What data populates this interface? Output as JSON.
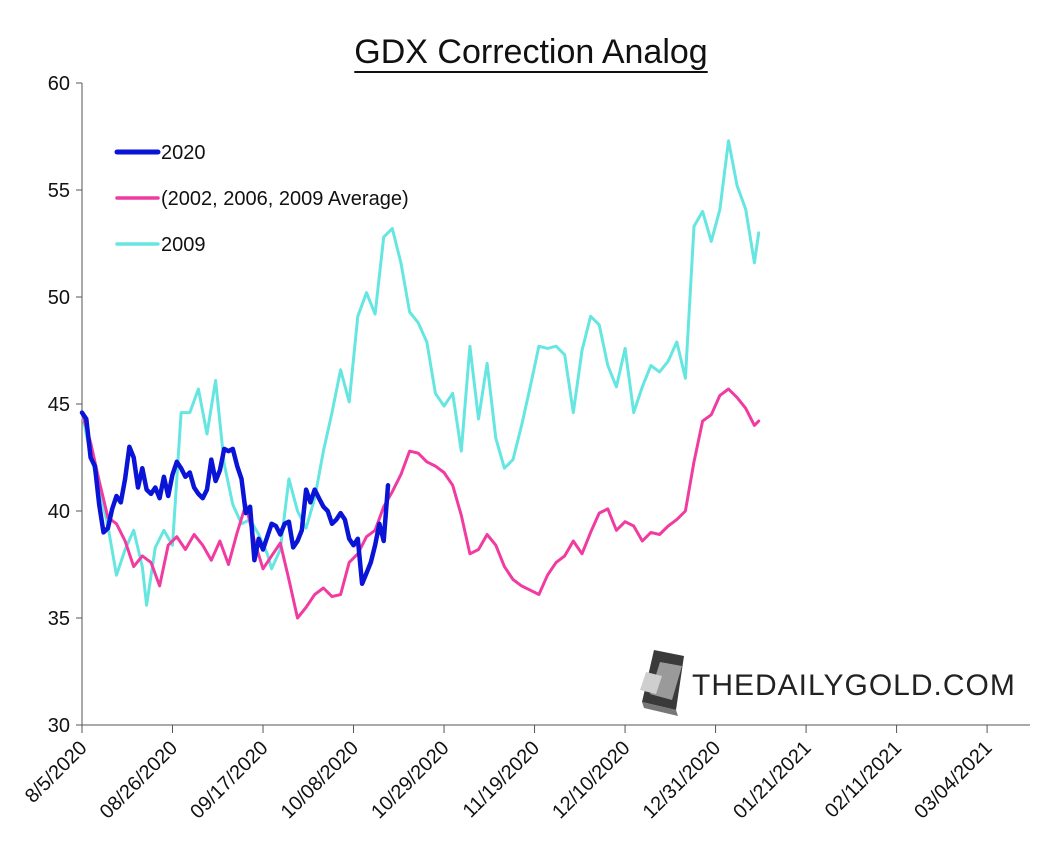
{
  "chart_data": {
    "type": "line",
    "title": "GDX Correction Analog",
    "xlabel": "",
    "ylabel": "",
    "ylim": [
      30,
      60
    ],
    "yticks": [
      30,
      35,
      40,
      45,
      50,
      55,
      60
    ],
    "xticks": [
      "8/5/2020",
      "08/26/2020",
      "09/17/2020",
      "10/08/2020",
      "10/29/2020",
      "11/19/2020",
      "12/10/2020",
      "12/31/2020",
      "01/21/2021",
      "02/11/2021",
      "03/04/2021"
    ],
    "x_index_range": [
      0,
      157
    ],
    "legend_position": "top-left",
    "grid": false,
    "watermark": "THEDAILYGOLD.COM",
    "series": [
      {
        "name": "2020",
        "color": "#0a14d6",
        "points": [
          [
            0,
            44.6
          ],
          [
            1,
            44.3
          ],
          [
            2,
            42.5
          ],
          [
            3,
            42.1
          ],
          [
            4,
            40.3
          ],
          [
            5,
            39.0
          ],
          [
            6,
            39.2
          ],
          [
            7,
            40.1
          ],
          [
            8,
            40.7
          ],
          [
            9,
            40.4
          ],
          [
            10,
            41.5
          ],
          [
            11,
            43.0
          ],
          [
            12,
            42.5
          ],
          [
            13,
            41.1
          ],
          [
            14,
            42.0
          ],
          [
            15,
            41.0
          ],
          [
            16,
            40.8
          ],
          [
            17,
            41.1
          ],
          [
            18,
            40.6
          ],
          [
            19,
            41.6
          ],
          [
            20,
            40.7
          ],
          [
            21,
            41.7
          ],
          [
            22,
            42.3
          ],
          [
            23,
            42.0
          ],
          [
            24,
            41.6
          ],
          [
            25,
            41.8
          ],
          [
            26,
            41.1
          ],
          [
            27,
            40.8
          ],
          [
            28,
            40.6
          ],
          [
            29,
            41.0
          ],
          [
            30,
            42.4
          ],
          [
            31,
            41.4
          ],
          [
            32,
            41.9
          ],
          [
            33,
            42.9
          ],
          [
            34,
            42.8
          ],
          [
            35,
            42.9
          ],
          [
            36,
            42.1
          ],
          [
            37,
            41.5
          ],
          [
            38,
            39.9
          ],
          [
            39,
            40.2
          ],
          [
            40,
            37.7
          ],
          [
            41,
            38.7
          ],
          [
            42,
            38.2
          ],
          [
            43,
            38.8
          ],
          [
            44,
            39.4
          ],
          [
            45,
            39.3
          ],
          [
            46,
            38.9
          ],
          [
            47,
            39.4
          ],
          [
            48,
            39.5
          ],
          [
            49,
            38.3
          ],
          [
            50,
            38.6
          ],
          [
            51,
            39.1
          ],
          [
            52,
            41.0
          ],
          [
            53,
            40.4
          ],
          [
            54,
            41.0
          ],
          [
            55,
            40.6
          ],
          [
            56,
            40.2
          ],
          [
            57,
            40.0
          ],
          [
            58,
            39.4
          ],
          [
            59,
            39.6
          ],
          [
            60,
            39.9
          ],
          [
            61,
            39.6
          ],
          [
            62,
            38.7
          ],
          [
            63,
            38.4
          ],
          [
            64,
            38.7
          ],
          [
            65,
            36.6
          ],
          [
            66,
            37.1
          ],
          [
            67,
            37.6
          ],
          [
            68,
            38.4
          ],
          [
            69,
            39.4
          ],
          [
            70,
            38.6
          ],
          [
            71,
            41.2
          ]
        ]
      },
      {
        "name": "(2002, 2006, 2009 Average)",
        "color": "#f03ca0",
        "points": [
          [
            0,
            44.6
          ],
          [
            2,
            43.2
          ],
          [
            4,
            41.4
          ],
          [
            6,
            39.7
          ],
          [
            8,
            39.4
          ],
          [
            10,
            38.6
          ],
          [
            12,
            37.4
          ],
          [
            14,
            37.9
          ],
          [
            16,
            37.6
          ],
          [
            18,
            36.5
          ],
          [
            20,
            38.4
          ],
          [
            22,
            38.8
          ],
          [
            24,
            38.2
          ],
          [
            26,
            38.9
          ],
          [
            28,
            38.4
          ],
          [
            30,
            37.7
          ],
          [
            32,
            38.6
          ],
          [
            34,
            37.5
          ],
          [
            36,
            39.0
          ],
          [
            38,
            40.3
          ],
          [
            40,
            38.6
          ],
          [
            42,
            37.3
          ],
          [
            44,
            37.9
          ],
          [
            46,
            38.5
          ],
          [
            48,
            36.8
          ],
          [
            50,
            35.0
          ],
          [
            52,
            35.5
          ],
          [
            54,
            36.1
          ],
          [
            56,
            36.4
          ],
          [
            58,
            36.0
          ],
          [
            60,
            36.1
          ],
          [
            62,
            37.6
          ],
          [
            64,
            38.0
          ],
          [
            66,
            38.8
          ],
          [
            68,
            39.1
          ],
          [
            70,
            40.2
          ],
          [
            72,
            40.9
          ],
          [
            74,
            41.7
          ],
          [
            76,
            42.8
          ],
          [
            78,
            42.7
          ],
          [
            80,
            42.3
          ],
          [
            82,
            42.1
          ],
          [
            84,
            41.8
          ],
          [
            86,
            41.2
          ],
          [
            88,
            39.8
          ],
          [
            90,
            38.0
          ],
          [
            92,
            38.2
          ],
          [
            94,
            38.9
          ],
          [
            96,
            38.4
          ],
          [
            98,
            37.4
          ],
          [
            100,
            36.8
          ],
          [
            102,
            36.5
          ],
          [
            104,
            36.3
          ],
          [
            106,
            36.1
          ],
          [
            108,
            37.0
          ],
          [
            110,
            37.6
          ],
          [
            112,
            37.9
          ],
          [
            114,
            38.6
          ],
          [
            116,
            38.0
          ],
          [
            118,
            39.0
          ],
          [
            120,
            39.9
          ],
          [
            122,
            40.1
          ],
          [
            124,
            39.1
          ],
          [
            126,
            39.5
          ],
          [
            128,
            39.3
          ],
          [
            130,
            38.6
          ],
          [
            132,
            39.0
          ],
          [
            134,
            38.9
          ],
          [
            136,
            39.3
          ],
          [
            138,
            39.6
          ],
          [
            140,
            40.0
          ],
          [
            142,
            42.3
          ],
          [
            144,
            44.2
          ],
          [
            146,
            44.5
          ],
          [
            148,
            45.4
          ],
          [
            150,
            45.7
          ],
          [
            152,
            45.3
          ],
          [
            154,
            44.8
          ],
          [
            156,
            44.0
          ],
          [
            157,
            44.2
          ]
        ]
      },
      {
        "name": "2009",
        "color": "#66e6e0",
        "points": [
          [
            0,
            44.6
          ],
          [
            2,
            42.6
          ],
          [
            4,
            41.1
          ],
          [
            6,
            39.3
          ],
          [
            8,
            37.0
          ],
          [
            10,
            38.2
          ],
          [
            12,
            39.1
          ],
          [
            14,
            37.4
          ],
          [
            15,
            35.6
          ],
          [
            17,
            38.3
          ],
          [
            19,
            39.1
          ],
          [
            21,
            38.4
          ],
          [
            23,
            44.6
          ],
          [
            25,
            44.6
          ],
          [
            27,
            45.7
          ],
          [
            29,
            43.6
          ],
          [
            31,
            46.1
          ],
          [
            33,
            42.2
          ],
          [
            35,
            40.3
          ],
          [
            37,
            39.4
          ],
          [
            39,
            39.6
          ],
          [
            41,
            38.9
          ],
          [
            43,
            38.0
          ],
          [
            44,
            37.3
          ],
          [
            46,
            38.2
          ],
          [
            48,
            41.5
          ],
          [
            50,
            40.0
          ],
          [
            52,
            39.2
          ],
          [
            54,
            40.6
          ],
          [
            56,
            42.8
          ],
          [
            58,
            44.6
          ],
          [
            60,
            46.6
          ],
          [
            62,
            45.1
          ],
          [
            64,
            49.1
          ],
          [
            66,
            50.2
          ],
          [
            68,
            49.2
          ],
          [
            70,
            52.8
          ],
          [
            72,
            53.2
          ],
          [
            74,
            51.6
          ],
          [
            76,
            49.3
          ],
          [
            78,
            48.8
          ],
          [
            80,
            47.9
          ],
          [
            82,
            45.5
          ],
          [
            84,
            44.9
          ],
          [
            86,
            45.5
          ],
          [
            88,
            42.8
          ],
          [
            90,
            47.7
          ],
          [
            92,
            44.3
          ],
          [
            94,
            46.9
          ],
          [
            96,
            43.4
          ],
          [
            98,
            42.0
          ],
          [
            100,
            42.4
          ],
          [
            102,
            44.0
          ],
          [
            104,
            45.8
          ],
          [
            106,
            47.7
          ],
          [
            108,
            47.6
          ],
          [
            110,
            47.7
          ],
          [
            112,
            47.3
          ],
          [
            114,
            44.6
          ],
          [
            116,
            47.5
          ],
          [
            118,
            49.1
          ],
          [
            120,
            48.7
          ],
          [
            122,
            46.8
          ],
          [
            124,
            45.8
          ],
          [
            126,
            47.6
          ],
          [
            128,
            44.6
          ],
          [
            130,
            45.8
          ],
          [
            132,
            46.8
          ],
          [
            134,
            46.5
          ],
          [
            136,
            47.0
          ],
          [
            138,
            47.9
          ],
          [
            140,
            46.2
          ],
          [
            142,
            53.3
          ],
          [
            144,
            54.0
          ],
          [
            146,
            52.6
          ],
          [
            148,
            54.1
          ],
          [
            150,
            57.3
          ],
          [
            152,
            55.2
          ],
          [
            154,
            54.1
          ],
          [
            156,
            51.6
          ],
          [
            157,
            53.0
          ]
        ]
      }
    ]
  }
}
